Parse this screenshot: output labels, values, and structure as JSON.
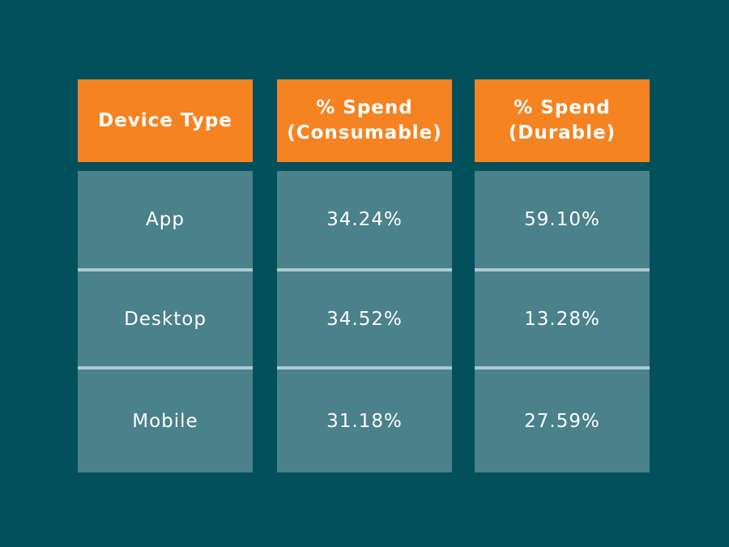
{
  "colors": {
    "background": "#03505d",
    "header": "#f58322",
    "cell": "#4a818b",
    "divider": "#a9cccf",
    "text": "#ffffff"
  },
  "chart_data": {
    "type": "table",
    "columns": [
      "Device Type",
      "% Spend\n(Consumable)",
      "% Spend\n(Durable)"
    ],
    "rows": [
      [
        "App",
        "34.24%",
        "59.10%"
      ],
      [
        "Desktop",
        "34.52%",
        "13.28%"
      ],
      [
        "Mobile",
        "31.18%",
        "27.59%"
      ]
    ]
  }
}
